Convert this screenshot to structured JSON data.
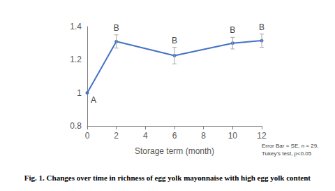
{
  "chart_data": {
    "type": "line",
    "caption": "Fig. 1. Changes over time in richness of egg yolk mayonnaise with high egg yolk content",
    "x_label": "Storage term (month)",
    "note": [
      "Error Bar = SE, n = 29,",
      "Tukey's test, p<0.05"
    ],
    "x": [
      0,
      2,
      6,
      10,
      12
    ],
    "values": [
      1.0,
      1.31,
      1.225,
      1.3,
      1.315
    ],
    "errors": [
      0,
      0.04,
      0.05,
      0.035,
      0.04
    ],
    "group_letters": [
      "A",
      "B",
      "B",
      "B",
      "B"
    ],
    "color": "#4472c4",
    "marker": "circle",
    "xlim": [
      0,
      12
    ],
    "xticks": [
      0,
      2,
      4,
      6,
      8,
      10,
      12
    ],
    "ylim": [
      0.8,
      1.4
    ],
    "yticks": [
      0.8,
      1,
      1.2,
      1.4
    ],
    "grid": false
  }
}
